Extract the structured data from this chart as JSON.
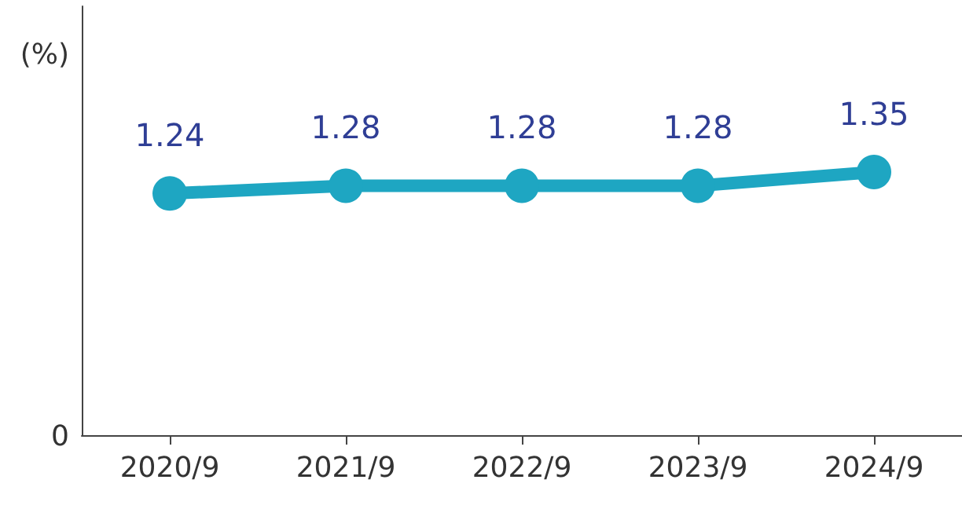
{
  "chart_data": {
    "type": "line",
    "ylabel": "(%)",
    "categories": [
      "2020/9",
      "2021/9",
      "2022/9",
      "2023/9",
      "2024/9"
    ],
    "series": [
      {
        "color": "#1ea6c2",
        "values": [
          1.24,
          1.28,
          1.28,
          1.28,
          1.35
        ]
      }
    ],
    "annotations": [
      "0"
    ],
    "data_labels": true,
    "marker": "circle",
    "line_style": "solid"
  }
}
